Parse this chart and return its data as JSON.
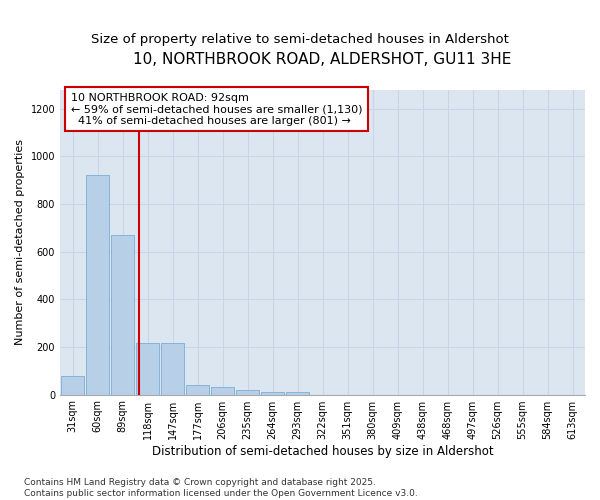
{
  "title": "10, NORTHBROOK ROAD, ALDERSHOT, GU11 3HE",
  "subtitle": "Size of property relative to semi-detached houses in Aldershot",
  "xlabel": "Distribution of semi-detached houses by size in Aldershot",
  "ylabel": "Number of semi-detached properties",
  "categories": [
    "31sqm",
    "60sqm",
    "89sqm",
    "118sqm",
    "147sqm",
    "177sqm",
    "206sqm",
    "235sqm",
    "264sqm",
    "293sqm",
    "322sqm",
    "351sqm",
    "380sqm",
    "409sqm",
    "438sqm",
    "468sqm",
    "497sqm",
    "526sqm",
    "555sqm",
    "584sqm",
    "613sqm"
  ],
  "values": [
    80,
    920,
    670,
    215,
    215,
    40,
    30,
    20,
    10,
    12,
    0,
    0,
    0,
    0,
    0,
    0,
    0,
    0,
    0,
    0,
    0
  ],
  "bar_color": "#b8cfe8",
  "bar_edge_color": "#7aaed6",
  "annotation_line1": "10 NORTHBROOK ROAD: 92sqm",
  "annotation_line2": "← 59% of semi-detached houses are smaller (1,130)",
  "annotation_line3": "  41% of semi-detached houses are larger (801) →",
  "annotation_box_color": "#ffffff",
  "annotation_box_edge_color": "#cc0000",
  "vline_x": 2.67,
  "vline_color": "#cc0000",
  "ylim": [
    0,
    1280
  ],
  "yticks": [
    0,
    200,
    400,
    600,
    800,
    1000,
    1200
  ],
  "grid_color": "#c8d4e8",
  "bg_color": "#dce6f0",
  "footer_text": "Contains HM Land Registry data © Crown copyright and database right 2025.\nContains public sector information licensed under the Open Government Licence v3.0.",
  "title_fontsize": 11,
  "subtitle_fontsize": 9.5,
  "xlabel_fontsize": 8.5,
  "ylabel_fontsize": 8,
  "tick_fontsize": 7,
  "annotation_fontsize": 8,
  "footer_fontsize": 6.5
}
